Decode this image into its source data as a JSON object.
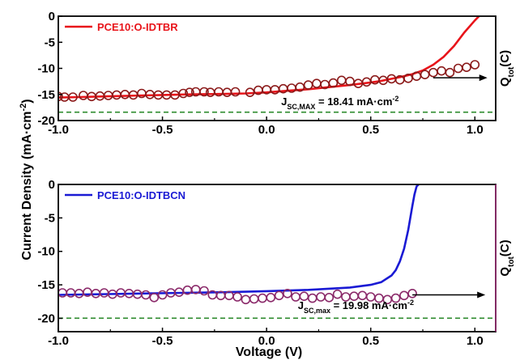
{
  "chart_data": [
    {
      "type": "line",
      "panel": "top",
      "xlim": [
        -1.0,
        1.1
      ],
      "ylim": [
        -20,
        0
      ],
      "x_ticks": [
        -1.0,
        -0.5,
        0.0,
        0.5,
        1.0
      ],
      "x_tick_labels": [
        "-1.0",
        "-0.5",
        "0.0",
        "0.5",
        "1.0"
      ],
      "y_ticks": [
        0,
        -5,
        -10,
        -15,
        -20
      ],
      "y_tick_labels": [
        "0",
        "-5",
        "-10",
        "-15",
        "-20"
      ],
      "grid": false,
      "legend": {
        "position": "top-left",
        "label": "PCE10:O-IDTBR",
        "color": "#e8141a"
      },
      "series": [
        {
          "name": "PCE10:O-IDTBR",
          "kind": "line",
          "color": "#e8141a",
          "x": [
            -1.0,
            -0.9,
            -0.8,
            -0.7,
            -0.6,
            -0.5,
            -0.4,
            -0.3,
            -0.2,
            -0.1,
            0.0,
            0.1,
            0.2,
            0.3,
            0.4,
            0.5,
            0.55,
            0.6,
            0.65,
            0.7,
            0.75,
            0.8,
            0.85,
            0.9,
            0.95,
            1.0,
            1.02
          ],
          "y": [
            -15.6,
            -15.5,
            -15.4,
            -15.3,
            -15.2,
            -15.1,
            -15.0,
            -14.95,
            -14.9,
            -14.8,
            -14.6,
            -14.3,
            -14.0,
            -13.6,
            -13.2,
            -12.7,
            -12.4,
            -12.0,
            -11.6,
            -11.1,
            -10.4,
            -9.3,
            -7.8,
            -5.7,
            -3.1,
            -0.8,
            0.0
          ]
        },
        {
          "name": "",
          "kind": "marker",
          "color": "#8b1a1a",
          "x": [
            -1.0,
            -0.97,
            -0.93,
            -0.88,
            -0.84,
            -0.8,
            -0.76,
            -0.72,
            -0.68,
            -0.64,
            -0.6,
            -0.56,
            -0.52,
            -0.48,
            -0.44,
            -0.4,
            -0.37,
            -0.34,
            -0.3,
            -0.27,
            -0.23,
            -0.19,
            -0.15,
            -0.08,
            -0.04,
            0.0,
            0.04,
            0.08,
            0.12,
            0.16,
            0.2,
            0.24,
            0.28,
            0.32,
            0.36,
            0.4,
            0.44,
            0.48,
            0.52,
            0.56,
            0.6,
            0.64,
            0.68,
            0.72,
            0.76,
            0.8,
            0.84,
            0.88,
            0.92,
            0.96,
            1.0
          ],
          "y": [
            -15.4,
            -15.5,
            -15.5,
            -15.2,
            -15.4,
            -15.3,
            -15.2,
            -15.1,
            -15.0,
            -15.1,
            -14.8,
            -15.0,
            -15.1,
            -15.1,
            -15.1,
            -14.8,
            -14.6,
            -14.5,
            -14.5,
            -14.6,
            -14.5,
            -14.6,
            -14.5,
            -14.6,
            -14.2,
            -14.1,
            -14.1,
            -13.9,
            -13.8,
            -13.6,
            -13.2,
            -12.9,
            -13.1,
            -12.8,
            -12.3,
            -12.5,
            -12.9,
            -12.6,
            -12.2,
            -12.3,
            -12.0,
            -12.2,
            -11.9,
            -11.5,
            -11.2,
            -10.8,
            -10.5,
            -10.8,
            -10.0,
            -9.8,
            -9.3
          ]
        },
        {
          "name": "",
          "kind": "dashed",
          "color": "#2e8b2e",
          "x": [
            -1.0,
            1.1
          ],
          "y": [
            -18.41,
            -18.41
          ]
        }
      ],
      "annotations": [
        {
          "type": "jsc",
          "main": "J",
          "sub": "SC,MAX",
          "rest": " = 18.41 mA·cm",
          "sup": "-2",
          "at": [
            0.07,
            -17.5
          ]
        },
        {
          "type": "arrow",
          "from": [
            0.8,
            -11.8
          ],
          "to": [
            1.06,
            -11.8
          ]
        }
      ],
      "right_label": {
        "main": "Q",
        "sub": "tot",
        "rest": "(C)"
      }
    },
    {
      "type": "line",
      "panel": "bottom",
      "xlim": [
        -1.0,
        1.1
      ],
      "ylim": [
        -22,
        0
      ],
      "x_ticks": [
        -1.0,
        -0.5,
        0.0,
        0.5,
        1.0
      ],
      "x_tick_labels": [
        "-1.0",
        "-0.5",
        "0.0",
        "0.5",
        "1.0"
      ],
      "y_ticks": [
        0,
        -5,
        -10,
        -15,
        -20
      ],
      "y_tick_labels": [
        "0",
        "-5",
        "-10",
        "-15",
        "-20"
      ],
      "grid": false,
      "legend": {
        "position": "top-left",
        "label": "PCE10:O-IDTBCN",
        "color": "#1a1ad4"
      },
      "series": [
        {
          "name": "PCE10:O-IDTBCN",
          "kind": "line",
          "color": "#1a1ad4",
          "x": [
            -1.0,
            -0.8,
            -0.6,
            -0.4,
            -0.2,
            0.0,
            0.2,
            0.4,
            0.5,
            0.55,
            0.6,
            0.62,
            0.64,
            0.66,
            0.68,
            0.7,
            0.71,
            0.72,
            0.73
          ],
          "y": [
            -16.5,
            -16.4,
            -16.3,
            -16.2,
            -16.1,
            -15.95,
            -15.75,
            -15.4,
            -15.0,
            -14.6,
            -13.6,
            -12.8,
            -11.5,
            -9.6,
            -6.8,
            -3.2,
            -1.5,
            -0.3,
            0.0
          ]
        },
        {
          "name": "",
          "kind": "marker",
          "color": "#8b2a6a",
          "x": [
            -0.98,
            -0.94,
            -0.9,
            -0.86,
            -0.82,
            -0.78,
            -0.74,
            -0.7,
            -0.66,
            -0.62,
            -0.58,
            -0.54,
            -0.5,
            -0.46,
            -0.42,
            -0.38,
            -0.34,
            -0.3,
            -0.26,
            -0.22,
            -0.18,
            -0.14,
            -0.1,
            -0.06,
            -0.02,
            0.02,
            0.06,
            0.1,
            0.14,
            0.18,
            0.22,
            0.26,
            0.3,
            0.34,
            0.38,
            0.42,
            0.46,
            0.5,
            0.54,
            0.58,
            0.62,
            0.66,
            0.7
          ],
          "y": [
            -16.2,
            -16.2,
            -16.3,
            -16.1,
            -16.3,
            -16.2,
            -16.4,
            -16.2,
            -16.3,
            -16.4,
            -16.5,
            -16.9,
            -16.5,
            -16.2,
            -16.1,
            -15.8,
            -15.7,
            -15.9,
            -16.5,
            -16.6,
            -16.6,
            -16.8,
            -17.2,
            -17.1,
            -17.0,
            -16.9,
            -16.6,
            -16.3,
            -16.8,
            -16.7,
            -17.0,
            -16.8,
            -16.9,
            -16.4,
            -16.8,
            -16.7,
            -16.6,
            -16.8,
            -17.0,
            -17.2,
            -17.0,
            -16.6,
            -16.3
          ]
        },
        {
          "name": "",
          "kind": "dashed",
          "color": "#2e8b2e",
          "x": [
            -1.0,
            1.1
          ],
          "y": [
            -19.98,
            -19.98
          ]
        }
      ],
      "annotations": [
        {
          "type": "jsc",
          "main": "J",
          "sub": "SC,max",
          "rest": " = 19.98 mA·cm",
          "sup": "-2",
          "at": [
            0.15,
            -19.0
          ]
        },
        {
          "type": "arrow",
          "from": [
            0.7,
            -16.5
          ],
          "to": [
            1.05,
            -16.5
          ]
        }
      ],
      "right_label": {
        "main": "Q",
        "sub": "tot",
        "rest": "(C)"
      }
    }
  ],
  "shared": {
    "ylabel_main": "Current Density (mA·cm",
    "ylabel_sup": "-2",
    "ylabel_end": ")",
    "xlabel": "Voltage (V)"
  }
}
